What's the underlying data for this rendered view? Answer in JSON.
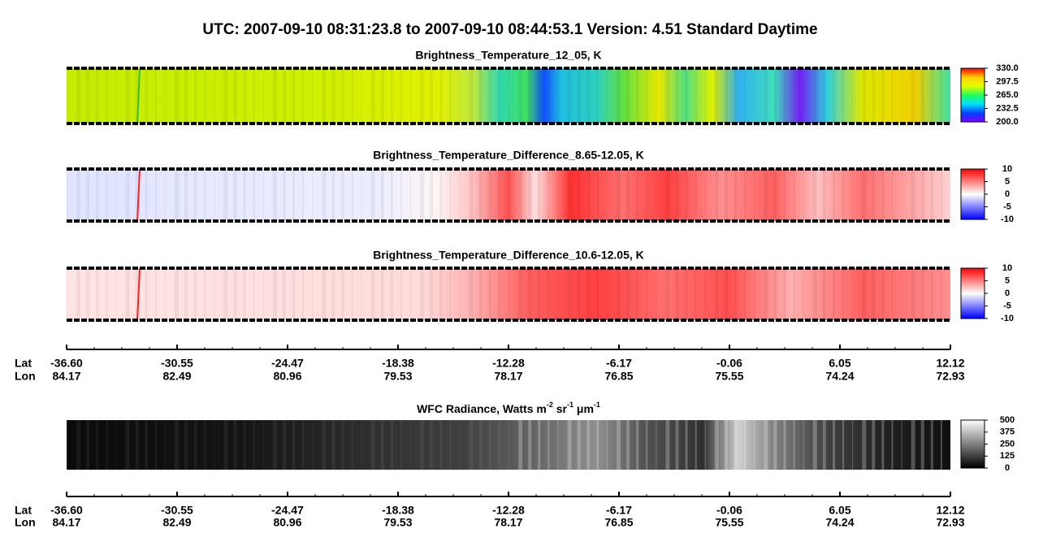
{
  "title": "UTC:  2007-09-10   08:31:23.8  to  2007-09-10   08:44:53.1    Version: 4.51  Standard Daytime",
  "panels": [
    {
      "title": "Brightness_Temperature_12_05, K",
      "colorbar": {
        "lim": [
          200,
          330
        ],
        "colors": [
          "#8000ff",
          "#0040ff",
          "#00e0ff",
          "#20ff60",
          "#e0ff00",
          "#ffd000",
          "#ff0000"
        ],
        "ticks": [
          {
            "value": 330,
            "label": "330.0"
          },
          {
            "value": 297.5,
            "label": "297.5"
          },
          {
            "value": 265,
            "label": "265.0"
          },
          {
            "value": 232.5,
            "label": "232.5"
          },
          {
            "value": 200,
            "label": "200.0"
          }
        ]
      }
    },
    {
      "title": "Brightness_Temperature_Difference_8.65-12.05, K",
      "colorbar": {
        "lim": [
          -10,
          10
        ],
        "colors": [
          "#0000ff",
          "#8080ff",
          "#ffffff",
          "#ff8080",
          "#ff0000"
        ],
        "ticks": [
          10,
          5,
          0,
          -5,
          -10
        ]
      }
    },
    {
      "title": "Brightness_Temperature_Difference_10.6-12.05, K",
      "colorbar": {
        "lim": [
          -10,
          10
        ],
        "colors": [
          "#0000ff",
          "#8080ff",
          "#ffffff",
          "#ff8080",
          "#ff0000"
        ],
        "ticks": [
          10,
          5,
          0,
          -5,
          -10
        ]
      }
    },
    {
      "title_parts": [
        "WFC Radiance, Watts m",
        "-2",
        " sr",
        "-1",
        " μm",
        "-1"
      ],
      "colorbar": {
        "lim": [
          0,
          500
        ],
        "colors": [
          "#000000",
          "#ffffff"
        ],
        "ticks": [
          500,
          375,
          250,
          125,
          0
        ]
      }
    }
  ],
  "axis": {
    "row_labels": [
      "Lat",
      "Lon"
    ],
    "lat": [
      "-36.60",
      "-30.55",
      "-24.47",
      "-18.38",
      "-12.28",
      "-6.17",
      "-0.06",
      "6.05",
      "12.12"
    ],
    "lon": [
      "84.17",
      "82.49",
      "80.96",
      "79.53",
      "78.17",
      "76.85",
      "75.55",
      "74.24",
      "72.93"
    ]
  }
}
